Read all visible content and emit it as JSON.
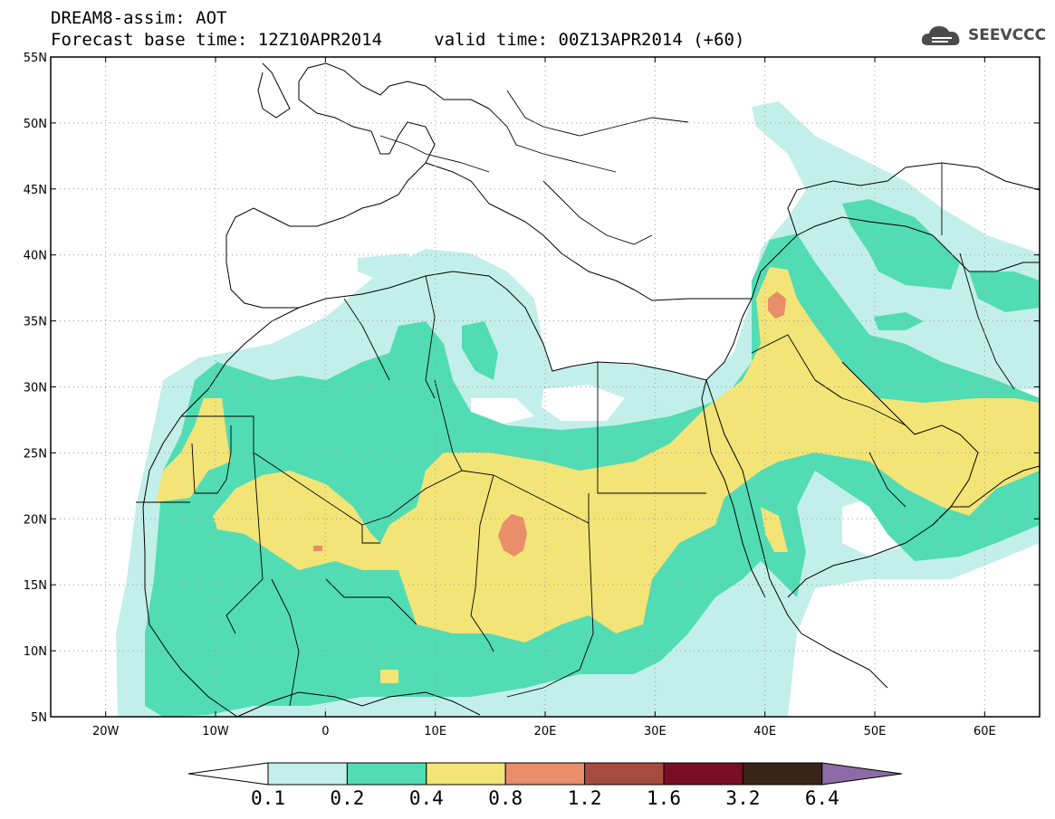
{
  "header": {
    "title_line1": "DREAM8-assim: AOT",
    "base_time_label": "Forecast base time: 12Z10APR2014",
    "valid_time_label": "valid time: 00Z13APR2014 (+60)"
  },
  "logo": {
    "text": "SEEVCCC",
    "icon": "cloud-icon"
  },
  "axes": {
    "lat_ticks": [
      "55N",
      "50N",
      "45N",
      "40N",
      "35N",
      "30N",
      "25N",
      "20N",
      "15N",
      "10N",
      "5N"
    ],
    "lon_ticks": [
      "20W",
      "10W",
      "0",
      "10E",
      "20E",
      "30E",
      "40E",
      "50E",
      "60E"
    ],
    "lat_range": [
      5,
      55
    ],
    "lon_range": [
      -25,
      65
    ],
    "grid": "dotted"
  },
  "colorbar": {
    "levels": [
      "0.1",
      "0.2",
      "0.4",
      "0.8",
      "1.2",
      "1.6",
      "3.2",
      "6.4"
    ],
    "colors": [
      "#ffffff",
      "#c3efea",
      "#52dcb3",
      "#f3e477",
      "#e88e6a",
      "#a84b3f",
      "#7a0f24",
      "#3a2418",
      "#8c6ba6"
    ]
  },
  "map_layers": {
    "fill_0_1": "#c3efea",
    "fill_0_2": "#52dcb3",
    "fill_0_4": "#f3e477",
    "fill_0_8": "#e88e6a",
    "coastline_color": "#000000"
  }
}
